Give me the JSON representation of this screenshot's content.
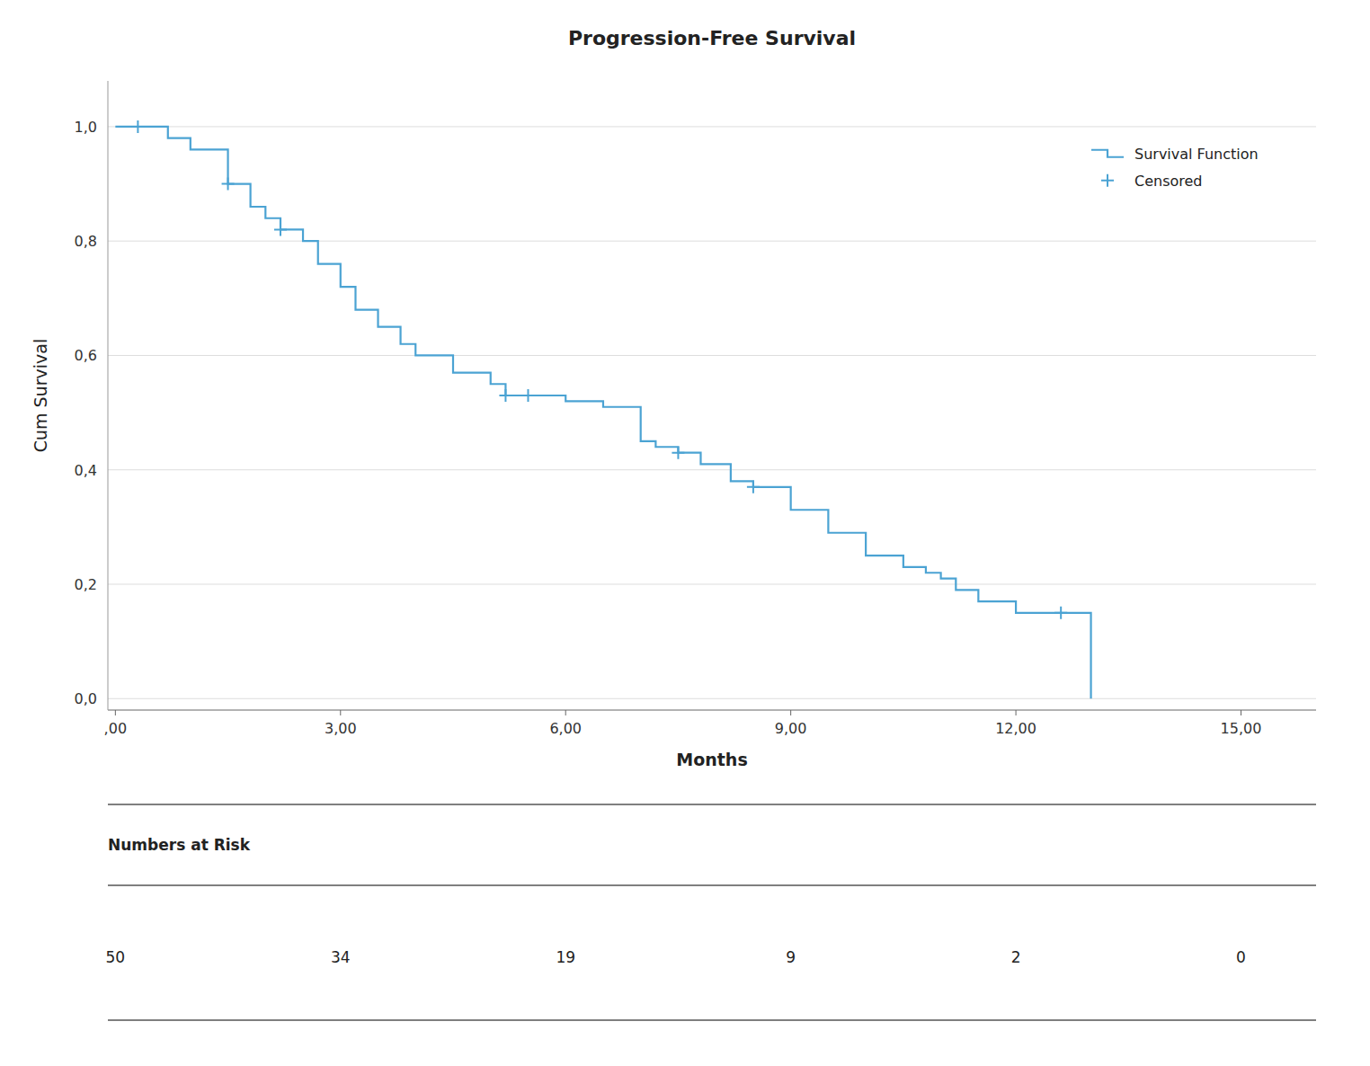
{
  "chart_data": {
    "type": "step",
    "title": "Progression-Free Survival",
    "x_label": "Months",
    "y_label": "Cum Survival",
    "xlim": [
      -0.1,
      16
    ],
    "ylim": [
      -0.02,
      1.08
    ],
    "xticks": [
      {
        "value": 0,
        "label": ",00"
      },
      {
        "value": 3,
        "label": "3,00"
      },
      {
        "value": 6,
        "label": "6,00"
      },
      {
        "value": 9,
        "label": "9,00"
      },
      {
        "value": 12,
        "label": "12,00"
      },
      {
        "value": 15,
        "label": "15,00"
      }
    ],
    "yticks": [
      {
        "value": 0.0,
        "label": "0,0"
      },
      {
        "value": 0.2,
        "label": "0,2"
      },
      {
        "value": 0.4,
        "label": "0,4"
      },
      {
        "value": 0.6,
        "label": "0,6"
      },
      {
        "value": 0.8,
        "label": "0,8"
      },
      {
        "value": 1.0,
        "label": "1,0"
      }
    ],
    "grid": "y",
    "legend": "top-right",
    "series": [
      {
        "name": "Survival Function",
        "type": "step",
        "color": "#4BA3D3",
        "x": [
          0.0,
          0.35,
          0.7,
          1.0,
          1.5,
          1.8,
          2.0,
          2.2,
          2.5,
          2.7,
          3.0,
          3.2,
          3.5,
          3.8,
          4.0,
          4.5,
          5.0,
          5.2,
          5.5,
          5.8,
          6.0,
          6.5,
          7.0,
          7.2,
          7.5,
          7.8,
          8.0,
          8.2,
          8.5,
          9.0,
          9.5,
          10.0,
          10.5,
          10.8,
          11.0,
          11.2,
          11.5,
          12.0,
          12.3,
          12.6,
          13.0
        ],
        "values": [
          1.0,
          1.0,
          0.98,
          0.96,
          0.9,
          0.86,
          0.84,
          0.82,
          0.8,
          0.76,
          0.72,
          0.68,
          0.65,
          0.62,
          0.6,
          0.57,
          0.55,
          0.53,
          0.53,
          0.53,
          0.52,
          0.51,
          0.45,
          0.44,
          0.43,
          0.41,
          0.41,
          0.38,
          0.37,
          0.33,
          0.29,
          0.25,
          0.23,
          0.22,
          0.21,
          0.19,
          0.17,
          0.15,
          0.15,
          0.15,
          0.0
        ]
      },
      {
        "name": "Censored",
        "type": "scatter",
        "marker": "+",
        "color": "#4BA3D3",
        "x": [
          0.3,
          1.5,
          2.2,
          5.2,
          5.5,
          7.5,
          8.5,
          12.6
        ],
        "values": [
          1.0,
          0.9,
          0.82,
          0.53,
          0.53,
          0.43,
          0.37,
          0.15
        ]
      }
    ],
    "risk_table": {
      "title": "Numbers at Risk",
      "x": [
        0,
        3,
        6,
        9,
        12,
        15
      ],
      "values": [
        50,
        34,
        19,
        9,
        2,
        0
      ]
    }
  }
}
